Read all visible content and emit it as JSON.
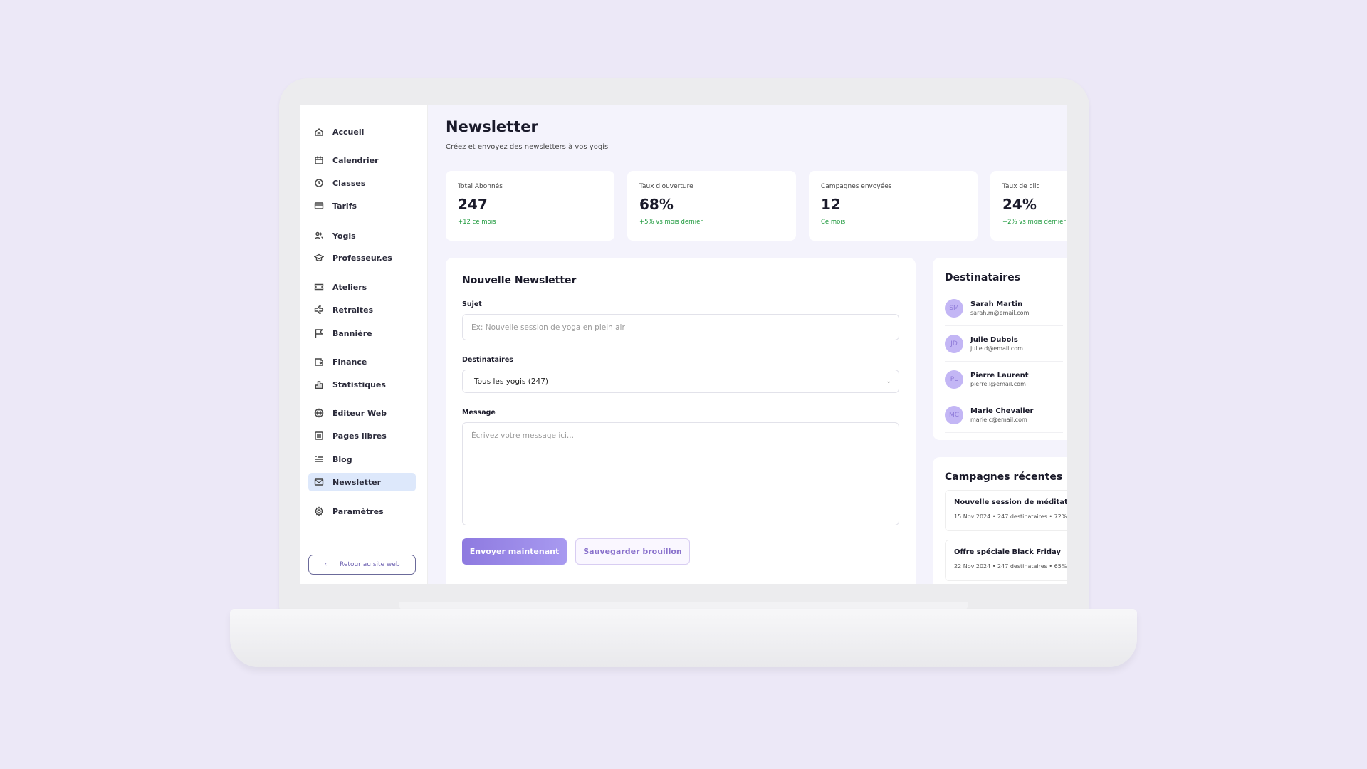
{
  "sidebar": {
    "items": [
      {
        "label": "Accueil",
        "icon": "home-icon"
      },
      {
        "label": "Calendrier",
        "icon": "calendar-icon"
      },
      {
        "label": "Classes",
        "icon": "clock-icon"
      },
      {
        "label": "Tarifs",
        "icon": "credit-card-icon"
      },
      {
        "label": "Yogis",
        "icon": "users-icon"
      },
      {
        "label": "Professeur.es",
        "icon": "graduation-cap-icon"
      },
      {
        "label": "Ateliers",
        "icon": "ticket-icon"
      },
      {
        "label": "Retraites",
        "icon": "plane-icon"
      },
      {
        "label": "Bannière",
        "icon": "flag-icon"
      },
      {
        "label": "Finance",
        "icon": "wallet-icon"
      },
      {
        "label": "Statistiques",
        "icon": "bar-chart-icon"
      },
      {
        "label": "Éditeur Web",
        "icon": "globe-icon"
      },
      {
        "label": "Pages libres",
        "icon": "document-icon"
      },
      {
        "label": "Blog",
        "icon": "blog-icon"
      },
      {
        "label": "Newsletter",
        "icon": "mail-icon",
        "active": true
      },
      {
        "label": "Paramètres",
        "icon": "gear-icon"
      }
    ],
    "back_label": "Retour au site web"
  },
  "header": {
    "title": "Newsletter",
    "subtitle": "Créez et envoyez des newsletters à vos yogis"
  },
  "stats": [
    {
      "label": "Total Abonnés",
      "value": "247",
      "change": "+12 ce mois"
    },
    {
      "label": "Taux d'ouverture",
      "value": "68%",
      "change": "+5% vs mois dernier"
    },
    {
      "label": "Campagnes envoyées",
      "value": "12",
      "change": "Ce mois"
    },
    {
      "label": "Taux de clic",
      "value": "24%",
      "change": "+2% vs mois dernier"
    }
  ],
  "form": {
    "title": "Nouvelle Newsletter",
    "subject_label": "Sujet",
    "subject_placeholder": "Ex: Nouvelle session de yoga en plein air",
    "recipients_label": "Destinataires",
    "recipients_value": "Tous les yogis (247)",
    "message_label": "Message",
    "message_placeholder": "Écrivez votre message ici...",
    "send_label": "Envoyer maintenant",
    "draft_label": "Sauvegarder brouillon"
  },
  "recipients": {
    "title": "Destinataires",
    "items": [
      {
        "initials": "SM",
        "name": "Sarah Martin",
        "email": "sarah.m@email.com"
      },
      {
        "initials": "JD",
        "name": "Julie Dubois",
        "email": "julie.d@email.com"
      },
      {
        "initials": "PL",
        "name": "Pierre Laurent",
        "email": "pierre.l@email.com"
      },
      {
        "initials": "MC",
        "name": "Marie Chevalier",
        "email": "marie.c@email.com"
      }
    ]
  },
  "campaigns": {
    "title": "Campagnes récentes",
    "items": [
      {
        "title": "Nouvelle session de méditation",
        "meta": "15 Nov 2024  •  247 destinataires  •  72%"
      },
      {
        "title": "Offre spéciale Black Friday",
        "meta": "22 Nov 2024  •  247 destinataires  •  65%"
      }
    ]
  },
  "colors": {
    "accent": "#8e7ae0",
    "active_nav": "#dde8fb",
    "positive": "#1f9a3e"
  }
}
